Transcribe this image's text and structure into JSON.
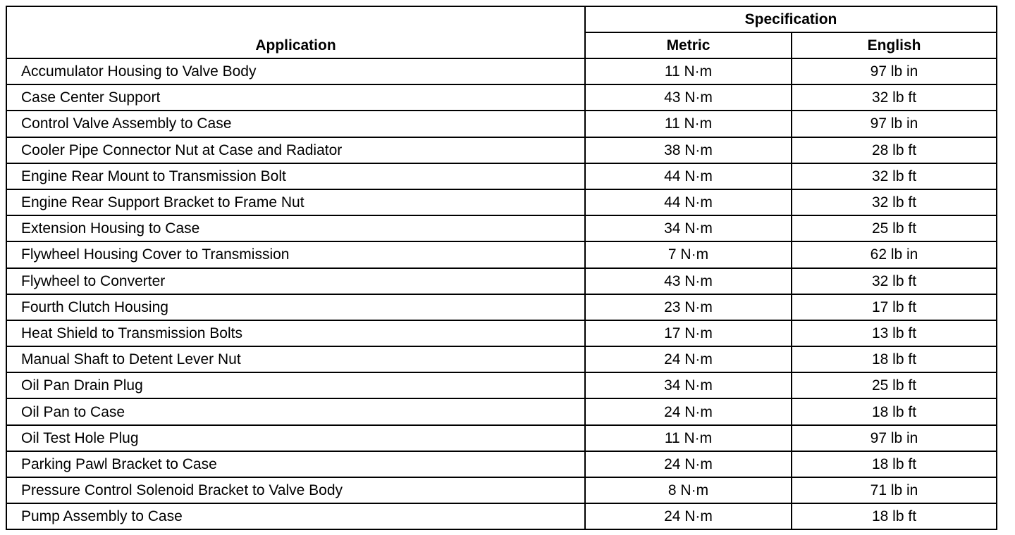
{
  "headers": {
    "application": "Application",
    "specification": "Specification",
    "metric": "Metric",
    "english": "English"
  },
  "rows": [
    {
      "application": "Accumulator Housing to Valve Body",
      "metric": "11 N·m",
      "english": "97 lb in"
    },
    {
      "application": "Case Center Support",
      "metric": "43 N·m",
      "english": "32 lb ft"
    },
    {
      "application": "Control Valve Assembly to Case",
      "metric": "11 N·m",
      "english": "97 lb in"
    },
    {
      "application": "Cooler Pipe Connector Nut at Case and Radiator",
      "metric": "38 N·m",
      "english": "28 lb ft"
    },
    {
      "application": "Engine Rear Mount to Transmission Bolt",
      "metric": "44 N·m",
      "english": "32 lb ft"
    },
    {
      "application": "Engine Rear Support Bracket to Frame Nut",
      "metric": "44 N·m",
      "english": "32 lb ft"
    },
    {
      "application": "Extension Housing to Case",
      "metric": "34 N·m",
      "english": "25 lb ft"
    },
    {
      "application": "Flywheel Housing Cover to Transmission",
      "metric": "7 N·m",
      "english": "62 lb in"
    },
    {
      "application": "Flywheel to Converter",
      "metric": "43 N·m",
      "english": "32 lb ft"
    },
    {
      "application": "Fourth Clutch Housing",
      "metric": "23 N·m",
      "english": "17 lb ft"
    },
    {
      "application": "Heat Shield to Transmission Bolts",
      "metric": "17 N·m",
      "english": "13 lb ft"
    },
    {
      "application": "Manual Shaft to Detent Lever Nut",
      "metric": "24 N·m",
      "english": "18 lb ft"
    },
    {
      "application": "Oil Pan Drain Plug",
      "metric": "34 N·m",
      "english": "25 lb ft"
    },
    {
      "application": "Oil Pan to Case",
      "metric": "24 N·m",
      "english": "18 lb ft"
    },
    {
      "application": "Oil Test Hole Plug",
      "metric": "11 N·m",
      "english": "97 lb in"
    },
    {
      "application": "Parking Pawl Bracket to Case",
      "metric": "24 N·m",
      "english": "18 lb ft"
    },
    {
      "application": "Pressure Control Solenoid Bracket to Valve Body",
      "metric": "8 N·m",
      "english": "71 lb in"
    },
    {
      "application": "Pump Assembly to Case",
      "metric": "24 N·m",
      "english": "18 lb ft"
    }
  ]
}
